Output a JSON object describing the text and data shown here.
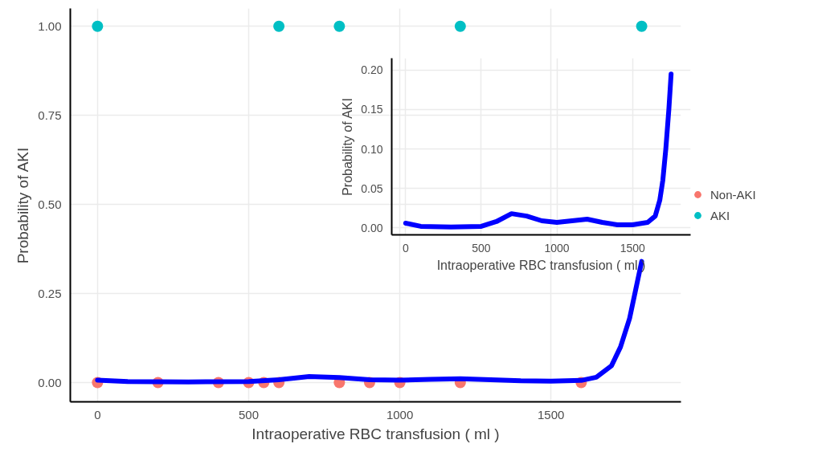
{
  "chart_data": [
    {
      "type": "scatter",
      "xlabel": "Intraoperative RBC transfusion ( ml )",
      "ylabel": "Probability of AKI",
      "xlim": [
        -90,
        1930
      ],
      "ylim": [
        -0.054,
        1.05
      ],
      "xticks": [
        0,
        500,
        1000,
        1500
      ],
      "yticks": [
        {
          "value": 0,
          "label": "0.00"
        },
        {
          "value": 0.25,
          "label": "0.25"
        },
        {
          "value": 0.5,
          "label": "0.50"
        },
        {
          "value": 0.75,
          "label": "0.75"
        },
        {
          "value": 1,
          "label": "1.00"
        }
      ],
      "grid": true,
      "legend": "right",
      "series": [
        {
          "name": "Non-AKI",
          "color": "#f8766d",
          "marker": "circle",
          "x": [
            0,
            200,
            400,
            500,
            550,
            600,
            800,
            900,
            1000,
            1200,
            1600
          ],
          "values": [
            0,
            0,
            0,
            0,
            0,
            0,
            0,
            0,
            0,
            0,
            0
          ]
        },
        {
          "name": "AKI",
          "color": "#00bfc4",
          "marker": "circle",
          "x": [
            0,
            600,
            800,
            1200,
            1800
          ],
          "values": [
            1,
            1,
            1,
            1,
            1
          ]
        },
        {
          "type": "line",
          "color": "#0000ff",
          "x": [
            0,
            100,
            300,
            500,
            600,
            700,
            800,
            900,
            1000,
            1100,
            1200,
            1300,
            1400,
            1500,
            1600,
            1650,
            1700,
            1730,
            1760,
            1780,
            1800
          ],
          "values": [
            0.007,
            0.003,
            0.002,
            0.003,
            0.008,
            0.017,
            0.014,
            0.008,
            0.007,
            0.009,
            0.011,
            0.008,
            0.005,
            0.004,
            0.006,
            0.015,
            0.047,
            0.1,
            0.18,
            0.26,
            0.34
          ]
        }
      ]
    },
    {
      "type": "line",
      "xlabel": "Intraoperative RBC transfusion ( ml )",
      "ylabel": "Probability of AKI",
      "xlim": [
        -92,
        1884
      ],
      "ylim": [
        -0.0088,
        0.215
      ],
      "xticks": [
        0,
        500,
        1000,
        1500
      ],
      "yticks": [
        {
          "value": 0,
          "label": "0.00"
        },
        {
          "value": 0.05,
          "label": "0.05"
        },
        {
          "value": 0.1,
          "label": "0.10"
        },
        {
          "value": 0.15,
          "label": "0.15"
        },
        {
          "value": 0.2,
          "label": "0.20"
        }
      ],
      "grid": true,
      "series": [
        {
          "color": "#0000ff",
          "x": [
            0,
            100,
            300,
            500,
            600,
            700,
            800,
            900,
            1000,
            1100,
            1200,
            1300,
            1400,
            1500,
            1600,
            1650,
            1680,
            1700,
            1720,
            1740,
            1755
          ],
          "values": [
            0.006,
            0.002,
            0.001,
            0.002,
            0.008,
            0.018,
            0.015,
            0.009,
            0.007,
            0.009,
            0.011,
            0.007,
            0.004,
            0.004,
            0.007,
            0.015,
            0.035,
            0.06,
            0.1,
            0.15,
            0.195
          ]
        }
      ]
    }
  ]
}
